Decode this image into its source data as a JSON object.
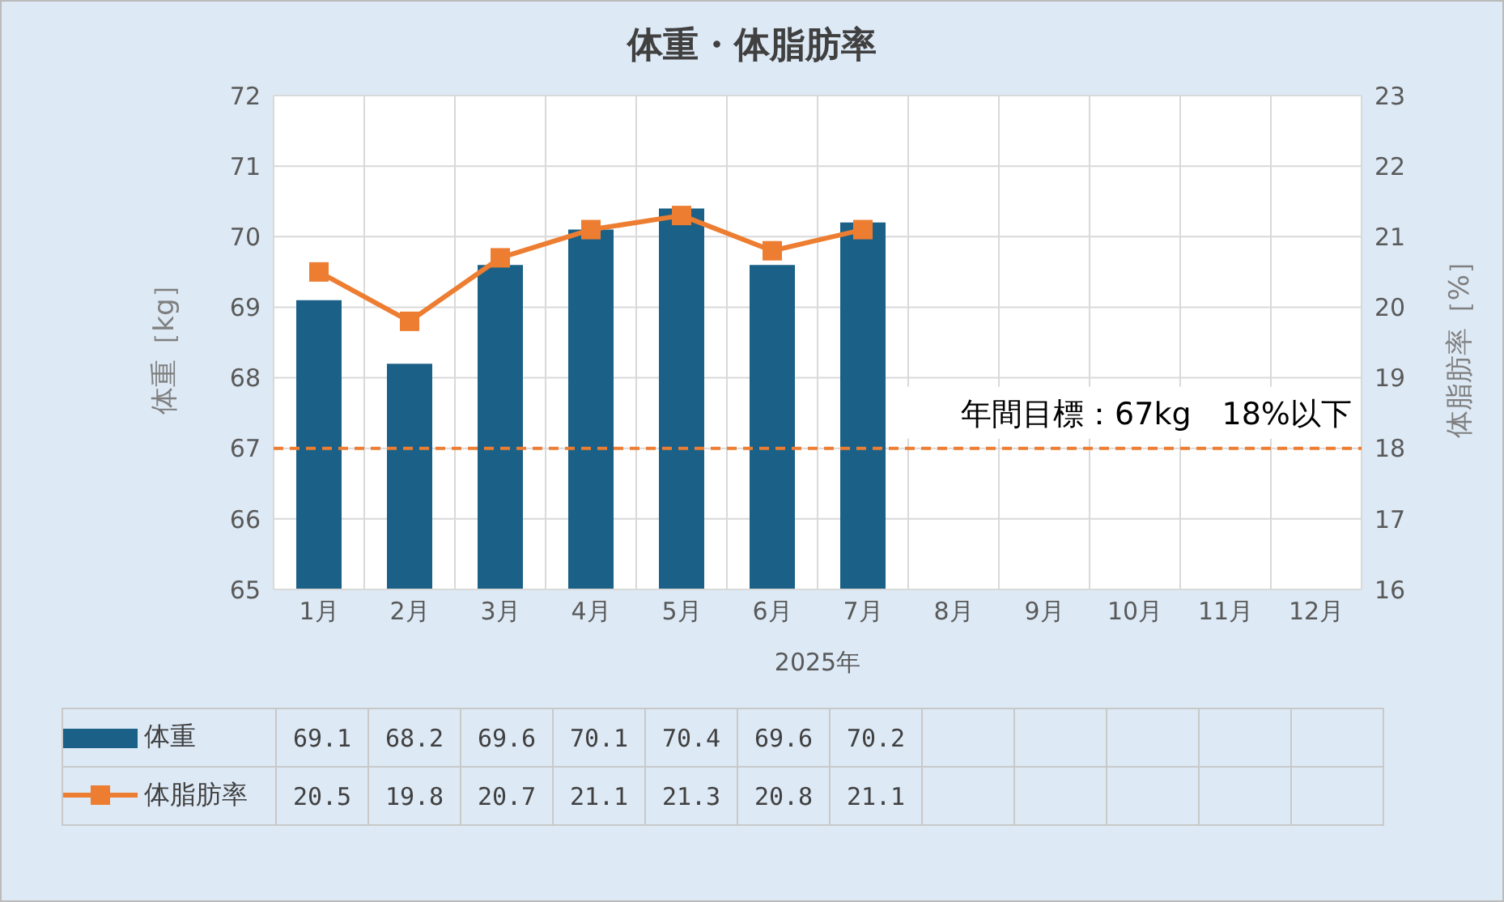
{
  "chart_data": {
    "type": "bar",
    "title": "体重・体脂肪率",
    "xlabel": "2025年",
    "ylabel": "体重［kg］",
    "y2label": "体脂肪率［%］",
    "categories": [
      "1月",
      "2月",
      "3月",
      "4月",
      "5月",
      "6月",
      "7月",
      "8月",
      "9月",
      "10月",
      "11月",
      "12月"
    ],
    "series": [
      {
        "name": "体重",
        "color": "#1b6187",
        "values": [
          69.1,
          68.2,
          69.6,
          70.1,
          70.4,
          69.6,
          70.2,
          null,
          null,
          null,
          null,
          null
        ]
      },
      {
        "name": "体脂肪率",
        "type": "line",
        "axis": "y2",
        "color": "#ed7d31",
        "marker": "square",
        "values": [
          20.5,
          19.8,
          20.7,
          21.1,
          21.3,
          20.8,
          21.1,
          null,
          null,
          null,
          null,
          null
        ]
      }
    ],
    "ylim": [
      65,
      72
    ],
    "yticks": [
      65,
      66,
      67,
      68,
      69,
      70,
      71,
      72
    ],
    "y2lim": [
      16,
      23
    ],
    "y2ticks": [
      16,
      17,
      18,
      19,
      20,
      21,
      22,
      23
    ],
    "ref_lines": [
      {
        "axis": "y",
        "value": 67,
        "label": "年間目標：67kg　18%以下",
        "color": "#ed7d31",
        "line_style": "dashed"
      }
    ],
    "grid": true,
    "legend": "bottom",
    "data_labels": true
  }
}
